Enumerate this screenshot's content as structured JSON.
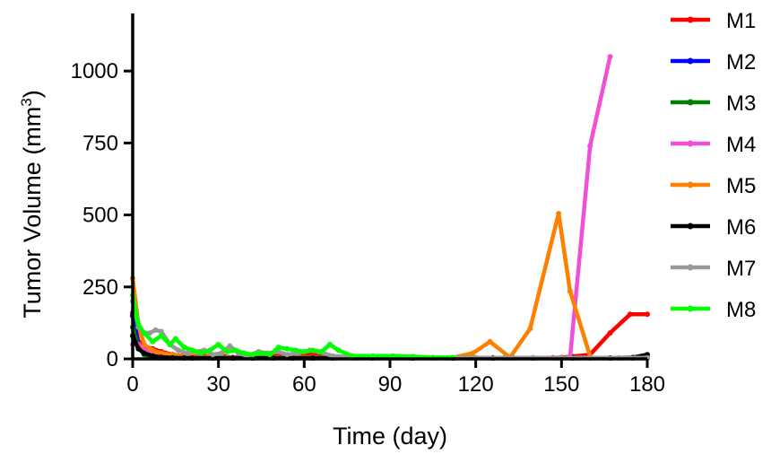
{
  "chart_data": {
    "type": "line",
    "xlabel": "Time (day)",
    "ylabel_main": "Tumor Volume (mm",
    "ylabel_sup": "3",
    "ylabel_close": ")",
    "xlim": [
      0,
      180
    ],
    "ylim": [
      0,
      1200
    ],
    "xticks": [
      0,
      30,
      60,
      90,
      120,
      150,
      180
    ],
    "yticks": [
      0,
      250,
      500,
      750,
      1000
    ],
    "grid": false,
    "legend_position": "right",
    "series": [
      {
        "name": "M1",
        "color": "#ff0000",
        "x": [
          0,
          2,
          4,
          7,
          10,
          14,
          18,
          21,
          25,
          28,
          32,
          35,
          39,
          42,
          46,
          49,
          53,
          56,
          60,
          63,
          67,
          70,
          77,
          84,
          91,
          98,
          105,
          112,
          119,
          126,
          133,
          140,
          147,
          150,
          154,
          160,
          167,
          174,
          180
        ],
        "y": [
          160,
          60,
          45,
          35,
          25,
          15,
          10,
          8,
          10,
          5,
          8,
          5,
          8,
          5,
          10,
          15,
          12,
          10,
          15,
          20,
          12,
          8,
          5,
          5,
          4,
          4,
          4,
          4,
          4,
          4,
          4,
          4,
          4,
          5,
          8,
          15,
          90,
          155,
          155
        ]
      },
      {
        "name": "M2",
        "color": "#0000ff",
        "x": [
          0,
          2,
          4,
          7,
          10,
          14,
          18,
          21,
          25,
          28,
          35,
          42,
          49,
          56,
          63,
          70,
          84,
          98,
          112,
          126,
          140,
          150,
          160,
          167,
          175,
          180
        ],
        "y": [
          150,
          50,
          30,
          20,
          20,
          15,
          10,
          8,
          6,
          5,
          5,
          4,
          4,
          4,
          4,
          3,
          3,
          3,
          3,
          3,
          3,
          3,
          3,
          3,
          3,
          3
        ]
      },
      {
        "name": "M3",
        "color": "#007f00",
        "x": [
          0,
          2,
          4,
          7,
          10,
          14,
          18,
          21,
          28,
          35,
          42,
          49,
          56,
          63,
          70,
          84,
          98,
          112,
          126,
          140,
          154,
          167,
          175,
          180
        ],
        "y": [
          110,
          40,
          15,
          5,
          4,
          3,
          3,
          3,
          3,
          3,
          3,
          3,
          3,
          3,
          3,
          3,
          3,
          3,
          3,
          3,
          3,
          3,
          3,
          3
        ]
      },
      {
        "name": "M4",
        "color": "#f050d8",
        "x": [
          0,
          2,
          4,
          7,
          10,
          14,
          18,
          21,
          28,
          35,
          42,
          49,
          56,
          63,
          70,
          84,
          98,
          112,
          126,
          140,
          150,
          153,
          160,
          167
        ],
        "y": [
          50,
          50,
          30,
          20,
          15,
          10,
          8,
          6,
          5,
          4,
          4,
          4,
          4,
          3,
          3,
          3,
          3,
          3,
          3,
          3,
          3,
          5,
          740,
          1050
        ]
      },
      {
        "name": "M5",
        "color": "#ff7f00",
        "x": [
          0,
          2,
          4,
          7,
          10,
          14,
          18,
          21,
          28,
          35,
          42,
          49,
          56,
          63,
          70,
          77,
          84,
          91,
          98,
          105,
          112,
          119,
          125,
          132,
          139,
          149,
          153,
          160
        ],
        "y": [
          280,
          120,
          50,
          30,
          20,
          15,
          10,
          8,
          6,
          5,
          5,
          5,
          5,
          5,
          4,
          4,
          4,
          4,
          4,
          4,
          4,
          20,
          60,
          5,
          105,
          505,
          235,
          10
        ]
      },
      {
        "name": "M6",
        "color": "#000000",
        "x": [
          0,
          2,
          4,
          7,
          10,
          14,
          18,
          21,
          28,
          35,
          42,
          49,
          56,
          63,
          70,
          84,
          98,
          112,
          126,
          140,
          154,
          167,
          175,
          180
        ],
        "y": [
          80,
          35,
          20,
          10,
          6,
          4,
          3,
          3,
          3,
          3,
          3,
          3,
          3,
          3,
          3,
          3,
          3,
          3,
          3,
          3,
          3,
          3,
          5,
          15
        ]
      },
      {
        "name": "M7",
        "color": "#999999",
        "x": [
          0,
          2,
          4,
          6,
          8,
          10,
          13,
          16,
          19,
          22,
          25,
          28,
          31,
          34,
          37,
          40,
          44,
          47,
          51,
          54,
          58,
          62,
          65,
          70,
          80,
          90,
          100,
          110,
          120,
          130,
          140,
          150,
          160,
          170,
          180
        ],
        "y": [
          200,
          110,
          90,
          90,
          100,
          95,
          50,
          30,
          20,
          25,
          30,
          15,
          20,
          45,
          20,
          10,
          25,
          20,
          25,
          15,
          20,
          30,
          25,
          10,
          5,
          5,
          5,
          4,
          4,
          4,
          4,
          4,
          4,
          4,
          4
        ]
      },
      {
        "name": "M8",
        "color": "#00ff00",
        "x": [
          0,
          2,
          4,
          7,
          10,
          13,
          15,
          18,
          21,
          24,
          27,
          30,
          33,
          36,
          39,
          42,
          45,
          48,
          51,
          54,
          57,
          60,
          63,
          66,
          69,
          72,
          77,
          84,
          91,
          98,
          105,
          112
        ],
        "y": [
          220,
          120,
          90,
          60,
          80,
          50,
          70,
          40,
          30,
          20,
          30,
          50,
          25,
          30,
          20,
          15,
          20,
          15,
          40,
          35,
          30,
          25,
          30,
          25,
          50,
          30,
          10,
          10,
          10,
          8,
          5,
          5
        ]
      }
    ]
  }
}
